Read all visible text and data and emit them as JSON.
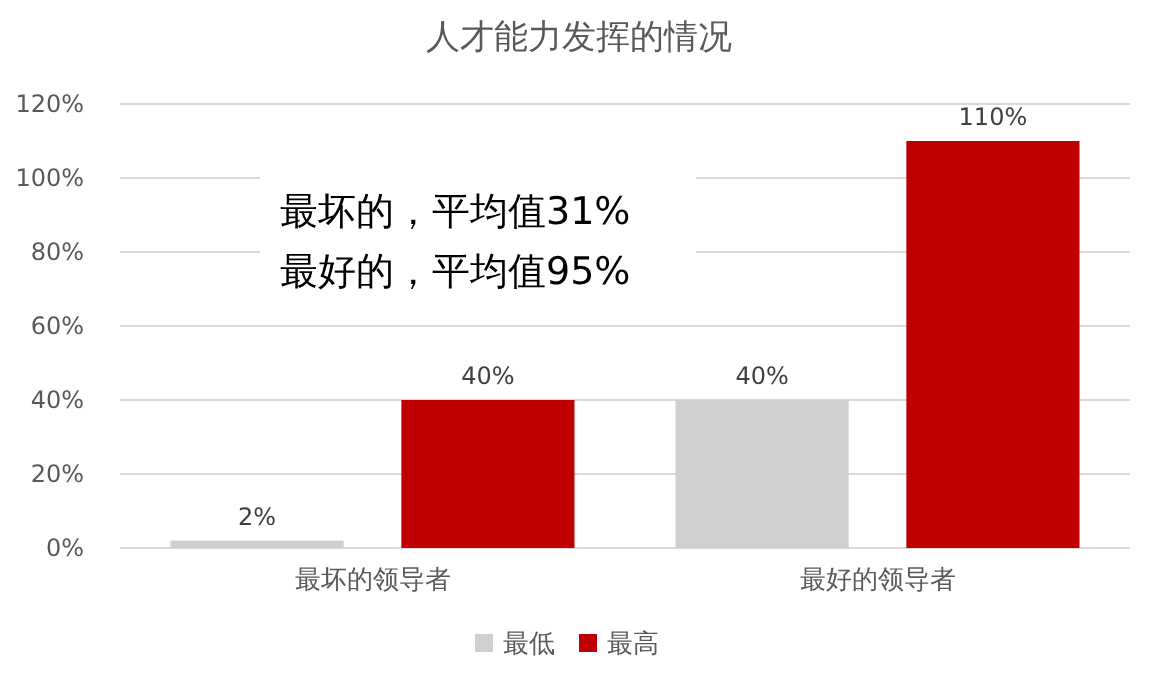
{
  "chart_data": {
    "type": "bar",
    "title": "人才能力发挥的情况",
    "categories": [
      "最坏的领导者",
      "最好的领导者"
    ],
    "series": [
      {
        "name": "最低",
        "color": "#d0cece",
        "values": [
          2,
          40
        ],
        "value_labels": [
          "2%",
          "40%"
        ]
      },
      {
        "name": "最高",
        "color": "#c00000",
        "values": [
          40,
          110
        ],
        "value_labels": [
          "40%",
          "110%"
        ]
      }
    ],
    "ylim": [
      0,
      120
    ],
    "yticks": [
      {
        "value": 0,
        "label": "0%"
      },
      {
        "value": 20,
        "label": "20%"
      },
      {
        "value": 40,
        "label": "40%"
      },
      {
        "value": 60,
        "label": "60%"
      },
      {
        "value": 80,
        "label": "80%"
      },
      {
        "value": 100,
        "label": "100%"
      },
      {
        "value": 120,
        "label": "120%"
      }
    ],
    "grid": "y",
    "legend": "bottom",
    "annotations": [
      "最坏的，平均值31%",
      "最好的，平均值95%"
    ]
  }
}
